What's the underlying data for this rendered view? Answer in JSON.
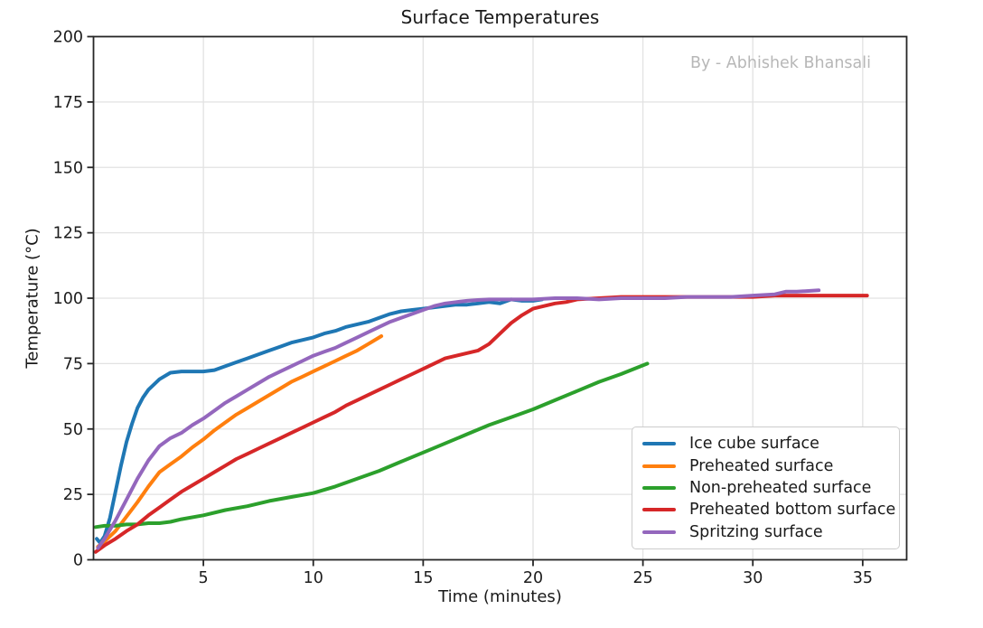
{
  "chart_data": {
    "type": "line",
    "title": "Surface Temperatures",
    "watermark": "By - Abhishek Bhansali",
    "xlabel": "Time (minutes)",
    "ylabel": "Temperature (°C)",
    "xlim": [
      0,
      37
    ],
    "ylim": [
      0,
      200
    ],
    "x_ticks": [
      5,
      10,
      15,
      20,
      25,
      30,
      35
    ],
    "y_ticks": [
      0,
      25,
      50,
      75,
      100,
      125,
      150,
      175,
      200
    ],
    "grid": true,
    "legend_position": "lower right",
    "series": [
      {
        "name": "Ice cube surface",
        "color": "#1f77b4",
        "x": [
          0.15,
          0.3,
          0.5,
          0.75,
          1,
          1.25,
          1.5,
          1.75,
          2,
          2.25,
          2.5,
          3,
          3.5,
          4,
          4.5,
          5,
          5.5,
          6,
          6.5,
          7,
          7.5,
          8,
          8.5,
          9,
          9.5,
          10,
          10.5,
          11,
          11.5,
          12,
          12.5,
          13,
          13.5,
          14,
          14.5,
          15,
          15.5,
          16,
          16.5,
          17,
          17.5,
          18,
          18.5,
          19,
          19.5,
          20,
          20.4
        ],
        "y": [
          8,
          6.5,
          9,
          16,
          26,
          36,
          45,
          52,
          58,
          62,
          65,
          69,
          71.5,
          72,
          72,
          72,
          72.5,
          74,
          75.5,
          77,
          78.5,
          80,
          81.5,
          83,
          84,
          85,
          86.5,
          87.5,
          89,
          90,
          91,
          92.5,
          94,
          95,
          95.5,
          96,
          96.5,
          97,
          97.5,
          97.5,
          98,
          98.5,
          98,
          99.5,
          99,
          99,
          99.5
        ]
      },
      {
        "name": "Preheated surface",
        "color": "#ff7f0e",
        "x": [
          0.2,
          0.5,
          1,
          1.5,
          2,
          2.5,
          3,
          3.5,
          4,
          4.5,
          5,
          5.5,
          6,
          6.5,
          7,
          7.5,
          8,
          8.5,
          9,
          9.5,
          10,
          10.5,
          11,
          11.5,
          12,
          12.5,
          13.1
        ],
        "y": [
          5,
          7,
          11,
          16.5,
          22,
          28,
          33.5,
          36.5,
          39.5,
          43,
          46,
          49.5,
          52.5,
          55.5,
          58,
          60.5,
          63,
          65.5,
          68,
          70,
          72,
          74,
          76,
          78,
          80,
          82.5,
          85.5
        ]
      },
      {
        "name": "Non-preheated surface",
        "color": "#2ca02c",
        "x": [
          0.1,
          0.5,
          1,
          1.5,
          2,
          2.5,
          3,
          3.5,
          4,
          5,
          6,
          7,
          8,
          9,
          10,
          11,
          12,
          13,
          14,
          15,
          16,
          17,
          18,
          19,
          20,
          21,
          22,
          23,
          24,
          25.2
        ],
        "y": [
          12.5,
          13,
          13,
          13.5,
          13.5,
          14,
          14,
          14.5,
          15.5,
          17,
          19,
          20.5,
          22.5,
          24,
          25.5,
          28,
          31,
          34,
          37.5,
          41,
          44.5,
          48,
          51.5,
          54.5,
          57.5,
          61,
          64.5,
          68,
          71,
          75
        ]
      },
      {
        "name": "Preheated bottom surface",
        "color": "#d62728",
        "x": [
          0.1,
          0.5,
          1,
          1.5,
          2,
          2.5,
          3,
          3.5,
          4,
          4.5,
          5,
          5.5,
          6,
          6.5,
          7,
          7.5,
          8,
          8.5,
          9,
          9.5,
          10,
          10.5,
          11,
          11.5,
          12,
          12.5,
          13,
          13.5,
          14,
          14.5,
          15,
          15.5,
          16,
          16.5,
          17,
          17.5,
          18,
          18.5,
          19,
          19.5,
          20,
          20.5,
          21,
          21.5,
          22,
          23,
          24,
          25,
          26,
          27,
          28,
          29,
          30,
          31,
          32,
          33,
          34,
          35.2
        ],
        "y": [
          3,
          5.5,
          8,
          11,
          13.5,
          17,
          20,
          23,
          26,
          28.5,
          31,
          33.5,
          36,
          38.5,
          40.5,
          42.5,
          44.5,
          46.5,
          48.5,
          50.5,
          52.5,
          54.5,
          56.5,
          59,
          61,
          63,
          65,
          67,
          69,
          71,
          73,
          75,
          77,
          78,
          79,
          80,
          82.5,
          86.5,
          90.5,
          93.5,
          96,
          97,
          98,
          98.5,
          99.5,
          100,
          100.5,
          100.5,
          100.5,
          100.5,
          100.5,
          100.5,
          100.5,
          101,
          101,
          101,
          101,
          101
        ]
      },
      {
        "name": "Spritzing surface",
        "color": "#9467bd",
        "x": [
          0.2,
          0.5,
          1,
          1.5,
          2,
          2.5,
          3,
          3.5,
          4,
          4.5,
          5,
          5.5,
          6,
          6.5,
          7,
          7.5,
          8,
          8.5,
          9,
          9.5,
          10,
          10.5,
          11,
          11.5,
          12,
          12.5,
          13,
          13.5,
          14,
          14.5,
          15,
          15.5,
          16,
          16.5,
          17,
          17.5,
          18,
          19,
          20,
          21,
          22,
          23,
          24,
          25,
          26,
          27,
          28,
          29,
          30,
          31,
          31.5,
          32,
          33
        ],
        "y": [
          4.5,
          8,
          15,
          23,
          31,
          38,
          43.5,
          46.5,
          48.5,
          51.5,
          54,
          57,
          60,
          62.5,
          65,
          67.5,
          70,
          72,
          74,
          76,
          78,
          79.5,
          81,
          83,
          85,
          87,
          89,
          91,
          92.5,
          94,
          95.5,
          97,
          98,
          98.5,
          99,
          99.3,
          99.5,
          99.5,
          99.5,
          100,
          100,
          99.5,
          100,
          100,
          100,
          100.5,
          100.5,
          100.5,
          101,
          101.5,
          102.5,
          102.5,
          103
        ]
      }
    ]
  }
}
